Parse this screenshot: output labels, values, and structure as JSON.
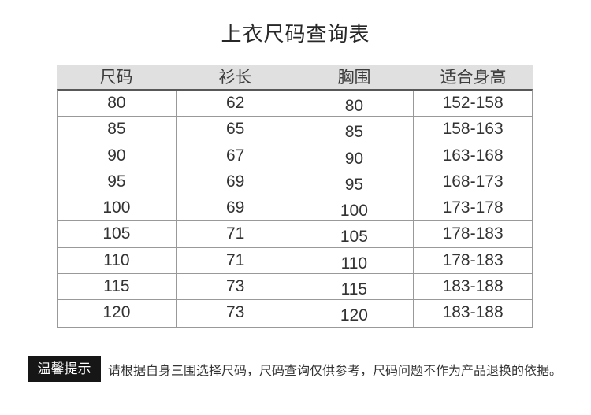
{
  "page": {
    "title": "上衣尺码查询表"
  },
  "table": {
    "headers": [
      "尺码",
      "衫长",
      "胸围",
      "适合身高"
    ],
    "rows": [
      [
        "80",
        "62",
        "80",
        "152-158"
      ],
      [
        "85",
        "65",
        "85",
        "158-163"
      ],
      [
        "90",
        "67",
        "90",
        "163-168"
      ],
      [
        "95",
        "69",
        "95",
        "168-173"
      ],
      [
        "100",
        "69",
        "100",
        "173-178"
      ],
      [
        "105",
        "71",
        "105",
        "178-183"
      ],
      [
        "110",
        "71",
        "110",
        "178-183"
      ],
      [
        "115",
        "73",
        "115",
        "183-188"
      ],
      [
        "120",
        "73",
        "120",
        "183-188"
      ]
    ]
  },
  "notice": {
    "label": "温馨提示",
    "text": "请根据自身三围选择尺码，尺码查询仅供参考，尺码问题不作为产品退换的依据。"
  },
  "colors": {
    "header_background": "#e0e0e0",
    "grid_line": "#999999",
    "header_underline": "#585858",
    "body_text": "#333333",
    "notice_label_background": "#161616",
    "notice_label_text": "#ffffff"
  }
}
